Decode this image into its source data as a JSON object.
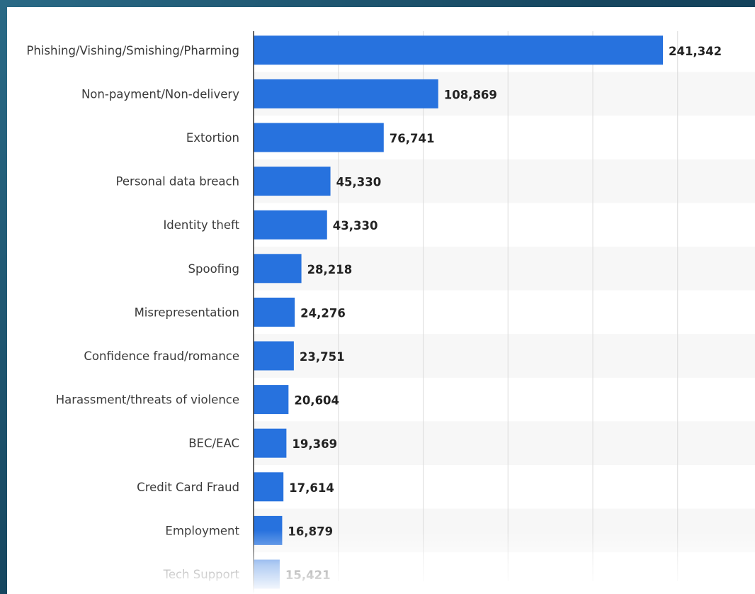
{
  "colors": {
    "bar": "#2772de",
    "band": "#f7f7f7",
    "grid": "#dcdcdc",
    "axis": "#333333"
  },
  "chart_data": {
    "type": "bar",
    "orientation": "horizontal",
    "categories": [
      "Phishing/Vishing/Smishing/Pharming",
      "Non-payment/Non-delivery",
      "Extortion",
      "Personal data breach",
      "Identity theft",
      "Spoofing",
      "Misrepresentation",
      "Confidence fraud/romance",
      "Harassment/threats of violence",
      "BEC/EAC",
      "Credit Card Fraud",
      "Employment",
      "Tech Support"
    ],
    "values": [
      241342,
      108869,
      76741,
      45330,
      43330,
      28218,
      24276,
      23751,
      20604,
      19369,
      17614,
      16879,
      15421
    ],
    "value_labels": [
      "241,342",
      "108,869",
      "76,741",
      "45,330",
      "43,330",
      "28,218",
      "24,276",
      "23,751",
      "20,604",
      "19,369",
      "17,614",
      "16,879",
      "15,421"
    ],
    "xlim": [
      0,
      300000
    ],
    "x_grid_step": 50000,
    "grid": true,
    "title": "",
    "xlabel": "",
    "ylabel": ""
  }
}
